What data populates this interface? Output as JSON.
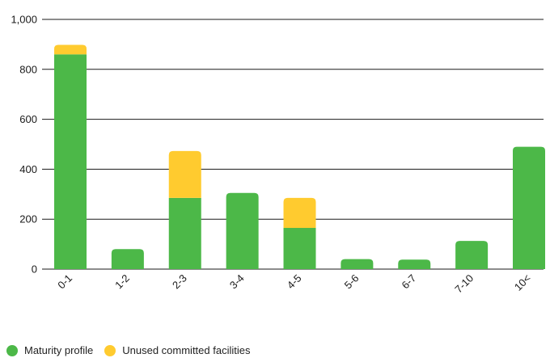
{
  "chart_data": {
    "type": "bar",
    "stacked": true,
    "categories": [
      "0-1",
      "1-2",
      "2-3",
      "3-4",
      "4-5",
      "5-6",
      "6-7",
      "7-10",
      "10<"
    ],
    "series": [
      {
        "name": "Maturity profile",
        "color": "#4cb848",
        "values": [
          860,
          80,
          285,
          305,
          165,
          40,
          38,
          113,
          490
        ]
      },
      {
        "name": "Unused committed facilities",
        "color": "#ffcb2f",
        "values": [
          38,
          0,
          188,
          0,
          120,
          0,
          0,
          0,
          0
        ]
      }
    ],
    "yticks": [
      "0",
      "200",
      "400",
      "600",
      "800",
      "1,000"
    ],
    "ylim": [
      0,
      1000
    ],
    "grid": true,
    "legend_position": "bottom-left"
  }
}
